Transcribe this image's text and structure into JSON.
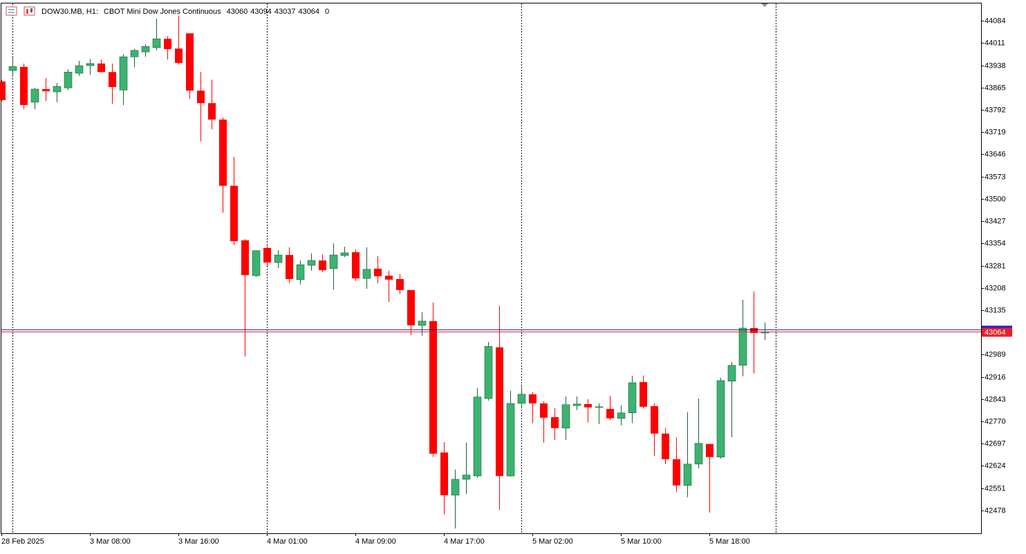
{
  "chart_data": {
    "type": "candlestick",
    "title": "DOW30.MB, H1:",
    "subtitle": "CBOT Mini Dow Jones Continuous",
    "spread": 0,
    "categories": [
      "28 Feb 2025",
      null,
      null,
      null,
      null,
      null,
      null,
      null,
      "3 Mar 08:00",
      null,
      null,
      null,
      null,
      null,
      null,
      null,
      "3 Mar 16:00",
      null,
      null,
      null,
      null,
      null,
      null,
      null,
      "4 Mar 01:00",
      null,
      null,
      null,
      null,
      null,
      null,
      null,
      "4 Mar 09:00",
      null,
      null,
      null,
      null,
      null,
      null,
      null,
      "4 Mar 17:00",
      null,
      null,
      null,
      null,
      null,
      null,
      null,
      "5 Mar 02:00",
      null,
      null,
      null,
      null,
      null,
      null,
      null,
      "5 Mar 10:00",
      null,
      null,
      null,
      null,
      null,
      null,
      null,
      "5 Mar 18:00",
      null,
      null,
      null,
      null,
      null
    ],
    "open": [
      43885,
      43921,
      43933,
      43817,
      43860,
      43851,
      43864,
      43912,
      43937,
      43944,
      43916,
      43857,
      43966,
      43982,
      43996,
      44025,
      43993,
      44043,
      43855,
      43814,
      43760,
      43543,
      43364,
      43248,
      43339,
      43291,
      43316,
      43235,
      43282,
      43298,
      43271,
      43314,
      43325,
      43239,
      43271,
      43248,
      43237,
      43201,
      43085,
      43099,
      42668,
      42528,
      42580,
      42591,
      42845,
      43013,
      42591,
      42829,
      42859,
      42829,
      42784,
      42748,
      42822,
      42827,
      42816,
      42811,
      42780,
      42798,
      42899,
      42820,
      42730,
      42646,
      42560,
      42630,
      42696,
      42653,
      42902,
      42954,
      43076,
      43060
    ],
    "high": [
      43890,
      43966,
      43944,
      43864,
      43896,
      43880,
      43925,
      43953,
      43959,
      43957,
      43944,
      43975,
      43993,
      44007,
      44091,
      44034,
      44102,
      44043,
      43916,
      43891,
      43767,
      43638,
      43368,
      43332,
      43352,
      43332,
      43341,
      43298,
      43321,
      43318,
      43354,
      43343,
      43334,
      43341,
      43312,
      43264,
      43253,
      43201,
      43128,
      43160,
      42702,
      42612,
      42700,
      42879,
      43031,
      43149,
      42870,
      42888,
      42866,
      42836,
      42813,
      42852,
      42852,
      42843,
      42829,
      42854,
      42823,
      42920,
      42920,
      42829,
      42748,
      42718,
      42800,
      42845,
      42696,
      42913,
      42965,
      43169,
      43196,
      43094
    ],
    "low": [
      43820,
      43900,
      43794,
      43794,
      43821,
      43817,
      43857,
      43903,
      43907,
      43914,
      43812,
      43808,
      43932,
      43966,
      43987,
      43957,
      43941,
      43828,
      43688,
      43728,
      43454,
      43348,
      42983,
      43244,
      43280,
      43273,
      43223,
      43219,
      43264,
      43260,
      43203,
      43309,
      43230,
      43205,
      43223,
      43162,
      43187,
      43053,
      43051,
      42653,
      42465,
      42419,
      42532,
      42585,
      42838,
      42480,
      42589,
      42816,
      42764,
      42700,
      42709,
      42709,
      42807,
      42766,
      42761,
      42775,
      42757,
      42764,
      42813,
      42657,
      42630,
      42539,
      42521,
      42616,
      42471,
      42648,
      42718,
      42918,
      42927,
      43037
    ],
    "close": [
      43824,
      43934,
      43808,
      43860,
      43853,
      43869,
      43916,
      43937,
      43944,
      43916,
      43867,
      43966,
      43987,
      44000,
      44025,
      43991,
      43946,
      43855,
      43814,
      43760,
      43543,
      43361,
      43250,
      43330,
      43291,
      43316,
      43237,
      43284,
      43298,
      43266,
      43316,
      43323,
      43239,
      43269,
      43246,
      43235,
      43201,
      43085,
      43099,
      42664,
      42528,
      42580,
      42594,
      42850,
      43016,
      42591,
      42829,
      42859,
      42829,
      42782,
      42748,
      42825,
      42827,
      42816,
      42818,
      42780,
      42798,
      42897,
      42818,
      42730,
      42646,
      42560,
      42630,
      42698,
      42653,
      42904,
      42954,
      43076,
      43060,
      43064
    ],
    "up_color": "#3cb371",
    "down_color": "#ff0000",
    "last_price": 43064,
    "last_color": "#e8202a",
    "ask_price": 43071,
    "ask_color": "#1c2a8c",
    "ylim": [
      42403,
      44141
    ],
    "yticks": [
      44084,
      44011,
      43938,
      43865,
      43792,
      43719,
      43646,
      43573,
      43500,
      43427,
      43354,
      43281,
      43208,
      43135,
      42989,
      42916,
      42843,
      42770,
      42697,
      42624,
      42551,
      42478
    ]
  }
}
